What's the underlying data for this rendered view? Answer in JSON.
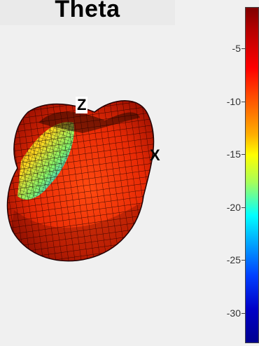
{
  "chart_data": {
    "type": "surface",
    "title": "Theta",
    "axis_labels": {
      "z": "Z",
      "x": "X"
    },
    "colorbar": {
      "ticks": [
        -5,
        -10,
        -15,
        -20,
        -25,
        -30
      ],
      "tick_labels": [
        "-5",
        "-10",
        "-15",
        "-20",
        "-25",
        "-30"
      ],
      "colormap": "jet"
    },
    "surface": {
      "mesh": "grid",
      "dominant_color": "red"
    }
  }
}
